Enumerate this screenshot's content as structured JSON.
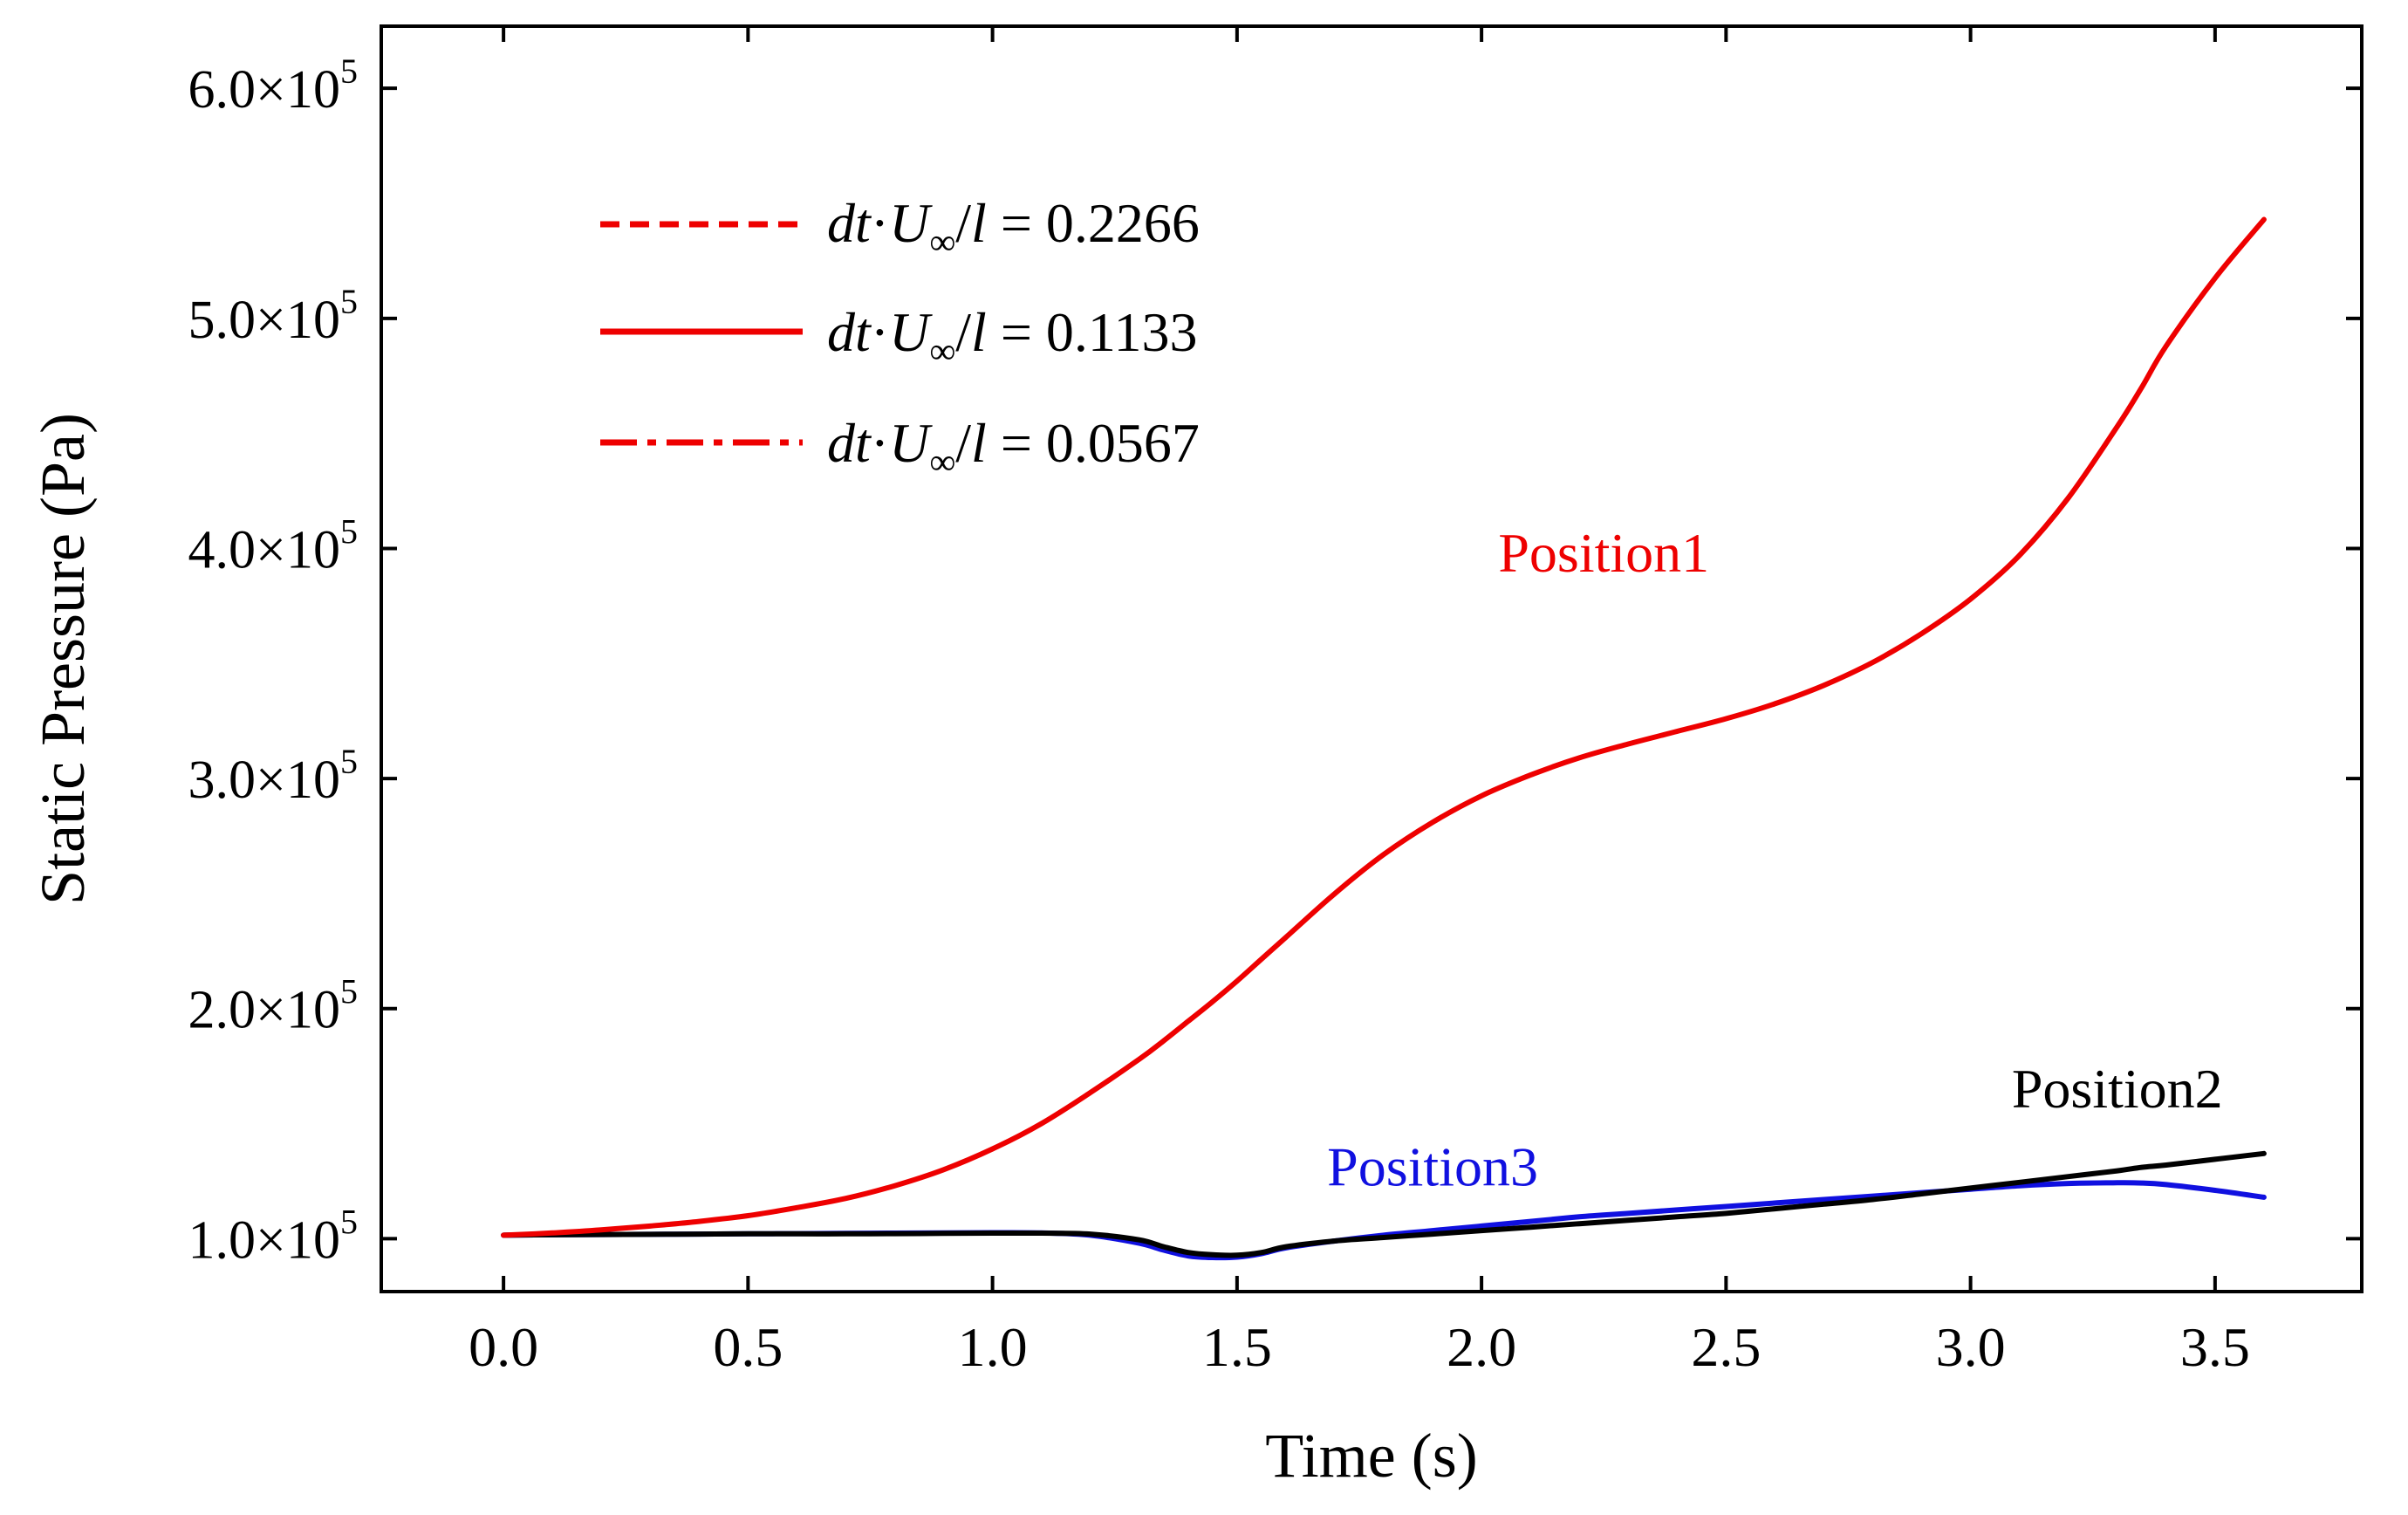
{
  "chart_data": {
    "type": "line",
    "title": "",
    "xlabel": "Time (s)",
    "ylabel": "Static Pressure (Pa)",
    "xlim": [
      -0.25,
      3.8
    ],
    "ylim": [
      77000,
      627000
    ],
    "xticks": [
      0.0,
      0.5,
      1.0,
      1.5,
      2.0,
      2.5,
      3.0,
      3.5
    ],
    "xtick_labels": [
      "0.0",
      "0.5",
      "1.0",
      "1.5",
      "2.0",
      "2.5",
      "3.0",
      "3.5"
    ],
    "yticks": [
      {
        "value": 100000,
        "mantissa": "1.0×10",
        "exp": "5"
      },
      {
        "value": 200000,
        "mantissa": "2.0×10",
        "exp": "5"
      },
      {
        "value": 300000,
        "mantissa": "3.0×10",
        "exp": "5"
      },
      {
        "value": 400000,
        "mantissa": "4.0×10",
        "exp": "5"
      },
      {
        "value": 500000,
        "mantissa": "5.0×10",
        "exp": "5"
      },
      {
        "value": 600000,
        "mantissa": "6.0×10",
        "exp": "5"
      }
    ],
    "legend": {
      "placement": "top-left",
      "prefix_dt": "dt",
      "prefix_dot": "·",
      "prefix_U": "U",
      "prefix_sub": "∞",
      "prefix_slash": "/",
      "prefix_l": "l",
      "entries": [
        {
          "style": "dashed",
          "value": " = 0.2266"
        },
        {
          "style": "solid",
          "value": " = 0.1133"
        },
        {
          "style": "dashdot",
          "value": " = 0.0567"
        }
      ]
    },
    "annotations": [
      {
        "text": "Position1",
        "color": "#ee0000",
        "x": 2.25,
        "y": 390000
      },
      {
        "text": "Position2",
        "color": "#000000",
        "x": 3.3,
        "y": 157000
      },
      {
        "text": "Position3",
        "color": "#1010e0",
        "x": 1.9,
        "y": 123000
      }
    ],
    "x": [
      0.0,
      0.1,
      0.2,
      0.3,
      0.4,
      0.5,
      0.6,
      0.7,
      0.8,
      0.9,
      1.0,
      1.1,
      1.2,
      1.3,
      1.35,
      1.4,
      1.45,
      1.5,
      1.55,
      1.6,
      1.7,
      1.8,
      1.9,
      2.0,
      2.1,
      2.2,
      2.3,
      2.4,
      2.5,
      2.6,
      2.7,
      2.8,
      2.9,
      3.0,
      3.1,
      3.2,
      3.3,
      3.35,
      3.4,
      3.5,
      3.6
    ],
    "series": [
      {
        "name": "Position1",
        "color": "#ee0000",
        "values": [
          101500,
          102500,
          103800,
          105500,
          107500,
          110000,
          113500,
          117500,
          123000,
          130000,
          139000,
          150000,
          163500,
          178000,
          186000,
          194500,
          203000,
          212000,
          221500,
          231000,
          250000,
          267000,
          281000,
          292500,
          301500,
          309000,
          315000,
          320500,
          326000,
          332500,
          340500,
          350500,
          363000,
          378000,
          397000,
          422000,
          453000,
          470000,
          488000,
          517500,
          543000
        ]
      },
      {
        "name": "Position2",
        "color": "#000000",
        "values": [
          101500,
          101700,
          101800,
          101900,
          102000,
          102100,
          102100,
          102100,
          102200,
          102300,
          102400,
          102400,
          102000,
          99500,
          96500,
          94000,
          93000,
          92800,
          94000,
          96500,
          99000,
          100500,
          102000,
          103500,
          105000,
          106500,
          108000,
          109500,
          111000,
          113000,
          115000,
          117000,
          119500,
          122000,
          124500,
          127000,
          129500,
          131000,
          132000,
          134500,
          137000
        ]
      },
      {
        "name": "Position3",
        "color": "#1010e0",
        "values": [
          101500,
          101700,
          101800,
          101900,
          102000,
          102100,
          102200,
          102300,
          102400,
          102500,
          102600,
          102500,
          101500,
          98000,
          95000,
          92500,
          91800,
          92000,
          93500,
          96000,
          99000,
          101500,
          103500,
          105500,
          107500,
          109500,
          111000,
          112500,
          114000,
          115500,
          117000,
          118500,
          120000,
          121500,
          123000,
          124000,
          124300,
          124200,
          123500,
          121000,
          118000
        ]
      }
    ]
  }
}
